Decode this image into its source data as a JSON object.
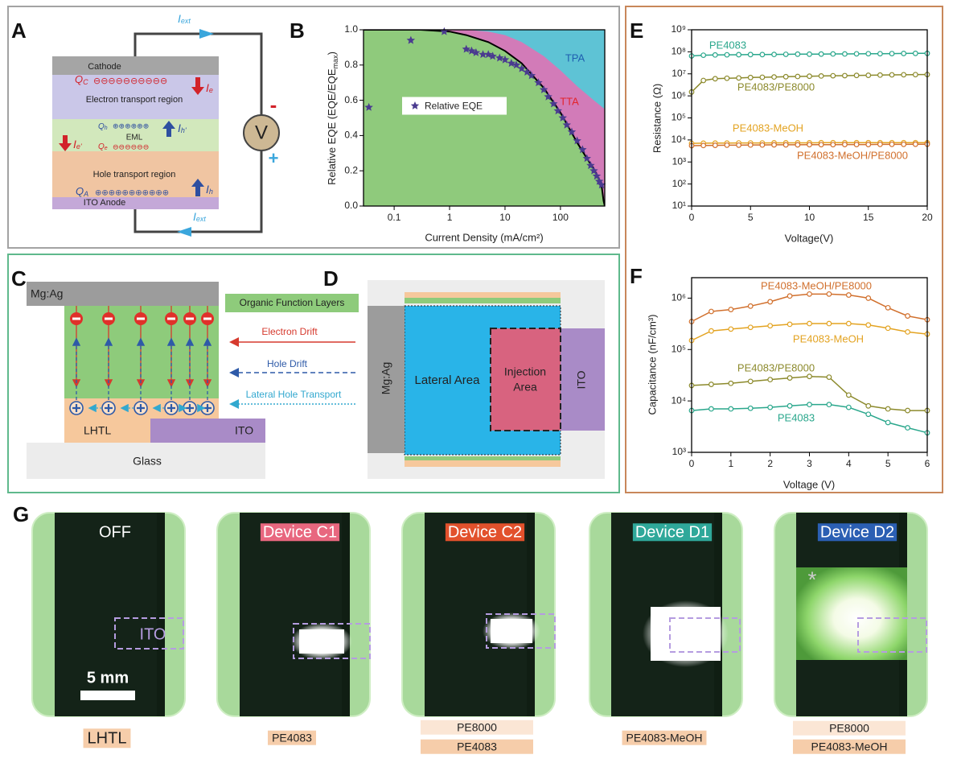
{
  "panel_a": {
    "letter": "A",
    "cathode": "Cathode",
    "etr": "Electron transport region",
    "eml": "EML",
    "htr": "Hole transport region",
    "anode": "ITO Anode",
    "qc": {
      "main": "Q",
      "sub": "C"
    },
    "qh": {
      "main": "Q",
      "sub": "h"
    },
    "qe": {
      "main": "Q",
      "sub": "e"
    },
    "qa": {
      "main": "Q",
      "sub": "A"
    },
    "ie": {
      "main": "I",
      "sub": "e"
    },
    "ih_prime": {
      "main": "I",
      "sub": "h'"
    },
    "ie_prime": {
      "main": "I",
      "sub": "e'"
    },
    "ih": {
      "main": "I",
      "sub": "h"
    },
    "iext_top": {
      "main": "I",
      "sub": "ext"
    },
    "iext_bottom": {
      "main": "I",
      "sub": "ext"
    },
    "voltmeter": "V",
    "minus": "-",
    "plus": "+",
    "electrons_c": "⊖⊖⊖⊖⊖⊖⊖⊖⊖⊖",
    "holes_h": "⊕⊕⊕⊕⊕⊕",
    "electrons_e": "⊖⊖⊖⊖⊖⊖",
    "holes_a": "⊕⊕⊕⊕⊕⊕⊕⊕⊕⊕⊕"
  },
  "panel_c": {
    "letter": "C",
    "mgag": "Mg:Ag",
    "organic": "Organic Function Layers",
    "electron_drift": "Electron Drift",
    "hole_drift": "Hole Drift",
    "lateral": "Lateral Hole Transport",
    "lhtl": "LHTL",
    "ito": "ITO",
    "glass": "Glass"
  },
  "panel_d": {
    "letter": "D",
    "mgag": "Mg:Ag",
    "lateral_area": "Lateral Area",
    "injection_area": [
      "Injection",
      "Area"
    ],
    "ito": "ITO"
  },
  "panel_g": {
    "letter": "G",
    "ito_label": "ITO",
    "scale": "5 mm",
    "asterisk": "*",
    "devices": [
      {
        "label": "OFF",
        "tags": [
          "LHTL"
        ]
      },
      {
        "label": "Device C1",
        "color": "#e8677f",
        "tags": [
          "PE4083"
        ]
      },
      {
        "label": "Device C2",
        "color": "#e2512c",
        "tags": [
          "PE8000",
          "PE4083"
        ]
      },
      {
        "label": "Device D1",
        "color": "#2fa89a",
        "tags": [
          "PE4083-MeOH"
        ]
      },
      {
        "label": "Device D2",
        "color": "#2b5fb3",
        "tags": [
          "PE8000",
          "PE4083-MeOH"
        ]
      }
    ]
  },
  "chart_data": [
    {
      "type": "area",
      "panel": "B",
      "x_label": "Current Density (mA/cm²)",
      "y_label": "Relative EQE (EQE/EQE",
      "y_label_sub": "max",
      "y_label_end": ")",
      "log_x": true,
      "xlim": [
        0.028,
        630
      ],
      "xticks": [
        0.1,
        1,
        10,
        100
      ],
      "ylim": [
        0,
        1
      ],
      "yticks": [
        0.0,
        0.2,
        0.4,
        0.6,
        0.8,
        1.0
      ],
      "legend": "center-left",
      "series": [
        {
          "name": "TPA",
          "kind": "area",
          "color": "#5ec3d5",
          "label_color": "#1f5fb0",
          "x": [
            0.028,
            630
          ],
          "values": [
            1,
            1
          ]
        },
        {
          "name": "TTA",
          "kind": "area",
          "color": "#d27bb8",
          "label_color": "#e3242b",
          "x": [
            0.028,
            2,
            5,
            10,
            20,
            50,
            100,
            200,
            400,
            630
          ],
          "values": [
            1,
            1,
            0.99,
            0.97,
            0.93,
            0.85,
            0.77,
            0.68,
            0.6,
            0.55
          ]
        },
        {
          "kind": "area",
          "color": "#8fca7c",
          "line_color": "#000000",
          "x": [
            0.028,
            0.3,
            1,
            2,
            5,
            10,
            20,
            50,
            100,
            200,
            300,
            400,
            500,
            560,
            600,
            630
          ],
          "values": [
            1,
            1,
            0.99,
            0.97,
            0.93,
            0.88,
            0.81,
            0.67,
            0.53,
            0.36,
            0.27,
            0.21,
            0.15,
            0.1,
            0.03,
            0
          ]
        },
        {
          "name": "Relative EQE",
          "kind": "scatter",
          "marker": "star",
          "color": "#4a3b8f",
          "x": [
            0.035,
            0.2,
            0.8,
            2,
            2.5,
            3,
            4,
            5,
            6,
            8,
            10,
            13,
            16,
            20,
            25,
            30,
            40,
            50,
            60,
            75,
            90,
            110,
            130,
            160,
            200,
            250,
            300,
            350,
            400,
            450,
            500,
            550
          ],
          "values": [
            0.56,
            0.94,
            0.99,
            0.89,
            0.88,
            0.87,
            0.86,
            0.86,
            0.85,
            0.84,
            0.83,
            0.81,
            0.8,
            0.78,
            0.76,
            0.74,
            0.7,
            0.66,
            0.62,
            0.58,
            0.54,
            0.5,
            0.46,
            0.42,
            0.37,
            0.32,
            0.27,
            0.23,
            0.2,
            0.17,
            0.14,
            0.12
          ]
        }
      ]
    },
    {
      "type": "line",
      "panel": "E",
      "x_label": "Voltage(V)",
      "y_label": "Resistance (Ω)",
      "log_y": true,
      "xlim": [
        0,
        20
      ],
      "xticks": [
        0,
        5,
        10,
        15,
        20
      ],
      "ylim": [
        10,
        1000000000
      ],
      "yticks": [
        {
          "value": 10,
          "label": "10¹"
        },
        {
          "value": 100,
          "label": "10²"
        },
        {
          "value": 1000,
          "label": "10³"
        },
        {
          "value": 10000,
          "label": "10⁴"
        },
        {
          "value": 100000,
          "label": "10⁵"
        },
        {
          "value": 1000000,
          "label": "10⁶"
        },
        {
          "value": 10000000,
          "label": "10⁷"
        },
        {
          "value": 100000000,
          "label": "10⁸"
        },
        {
          "value": 1000000000,
          "label": "10⁹"
        }
      ],
      "x": [
        0,
        1,
        2,
        3,
        4,
        5,
        6,
        7,
        8,
        9,
        10,
        11,
        12,
        13,
        14,
        15,
        16,
        17,
        18,
        19,
        20
      ],
      "series": [
        {
          "name": "PE4083",
          "color": "#2aa78c",
          "values": [
            65000000,
            70000000,
            72000000,
            73000000,
            74000000,
            75000000,
            75000000,
            76000000,
            77000000,
            78000000,
            78000000,
            79000000,
            80000000,
            80000000,
            81000000,
            82000000,
            82000000,
            83000000,
            84000000,
            85000000,
            85000000
          ]
        },
        {
          "name": "PE4083/PE8000",
          "color": "#8c8a2c",
          "values": [
            1500000,
            5000000,
            6000000,
            6300000,
            6500000,
            6800000,
            7000000,
            7200000,
            7400000,
            7600000,
            7800000,
            8000000,
            8200000,
            8300000,
            8500000,
            8600000,
            8800000,
            9000000,
            9100000,
            9200000,
            9300000
          ]
        },
        {
          "name": "PE4083-MeOH",
          "color": "#e3a321",
          "values": [
            7000,
            7100,
            7200,
            7200,
            7300,
            7300,
            7300,
            7400,
            7400,
            7400,
            7400,
            7500,
            7500,
            7500,
            7500,
            7500,
            7500,
            7500,
            7500,
            7500,
            7500
          ]
        },
        {
          "name": "PE4083-MeOH/PE8000",
          "color": "#d1702d",
          "values": [
            5500,
            5600,
            5700,
            5800,
            5800,
            5900,
            5900,
            6000,
            6000,
            6000,
            6100,
            6100,
            6100,
            6200,
            6200,
            6200,
            6300,
            6300,
            6300,
            6400,
            6400
          ]
        }
      ]
    },
    {
      "type": "line",
      "panel": "F",
      "x_label": "Voltage (V)",
      "y_label": "Capacitance (nF/cm³)",
      "log_y": true,
      "xlim": [
        0,
        6
      ],
      "xticks": [
        0,
        1,
        2,
        3,
        4,
        5,
        6
      ],
      "ylim": [
        1000,
        2500000
      ],
      "yticks": [
        {
          "value": 1000,
          "label": "10³"
        },
        {
          "value": 10000,
          "label": "10⁴"
        },
        {
          "value": 100000,
          "label": "10⁵"
        },
        {
          "value": 1000000,
          "label": "10⁶"
        }
      ],
      "x": [
        0,
        0.5,
        1,
        1.5,
        2,
        2.5,
        3,
        3.5,
        4,
        4.5,
        5,
        5.5,
        6
      ],
      "series": [
        {
          "name": "PE4083-MeOH/PE8000",
          "color": "#d1702d",
          "values": [
            350000,
            550000,
            600000,
            700000,
            850000,
            1100000,
            1200000,
            1200000,
            1150000,
            1000000,
            650000,
            450000,
            380000
          ]
        },
        {
          "name": "PE4083-MeOH",
          "color": "#e3a321",
          "values": [
            150000,
            230000,
            250000,
            270000,
            290000,
            310000,
            320000,
            320000,
            320000,
            300000,
            260000,
            220000,
            200000
          ]
        },
        {
          "name": "PE4083/PE8000",
          "color": "#8c8a2c",
          "values": [
            20000,
            21000,
            22000,
            24000,
            26000,
            28000,
            30000,
            29000,
            13000,
            8000,
            7000,
            6500,
            6500
          ]
        },
        {
          "name": "PE4083",
          "color": "#2aa78c",
          "values": [
            6500,
            7000,
            7000,
            7200,
            7500,
            8000,
            8500,
            8500,
            7500,
            5500,
            3800,
            3000,
            2400
          ]
        }
      ]
    }
  ]
}
